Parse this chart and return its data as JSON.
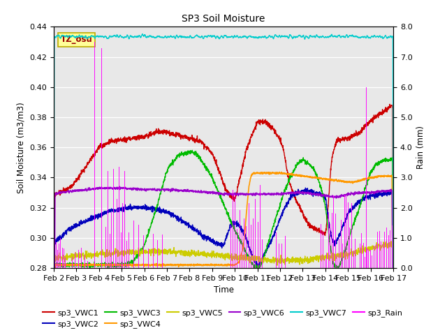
{
  "title": "SP3 Soil Moisture",
  "xlabel": "Time",
  "ylabel_left": "Soil Moisture (m3/m3)",
  "ylabel_right": "Rain (mm)",
  "ylim_left": [
    0.28,
    0.44
  ],
  "ylim_right": [
    0.0,
    8.0
  ],
  "xlim": [
    0,
    15
  ],
  "x_tick_labels": [
    "Feb 2",
    "Feb 3",
    "Feb 4",
    "Feb 5",
    "Feb 6",
    "Feb 7",
    "Feb 8",
    "Feb 9",
    "Feb 10",
    "Feb 11",
    "Feb 12",
    "Feb 13",
    "Feb 14",
    "Feb 15",
    "Feb 16",
    "Feb 17"
  ],
  "background_color": "#e8e8e8",
  "tz_label": "TZ_osu",
  "tz_box_color": "#ffff99",
  "tz_box_edge": "#bbaa00",
  "line_colors": {
    "VWC1": "#cc0000",
    "VWC2": "#0000bb",
    "VWC3": "#00bb00",
    "VWC4": "#ff9900",
    "VWC5": "#cccc00",
    "VWC6": "#9900cc",
    "VWC7": "#00cccc",
    "Rain": "#ff00ff"
  }
}
